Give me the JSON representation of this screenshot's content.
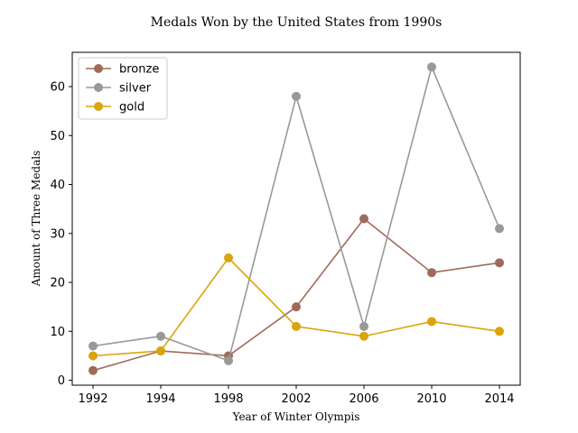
{
  "chart_data": {
    "type": "line",
    "title": "Medals Won by the United States from 1990s",
    "xlabel": "Year of Winter Olympis",
    "ylabel": "Amount of Three Medals",
    "categories": [
      "1992",
      "1994",
      "1998",
      "2002",
      "2006",
      "2010",
      "2014"
    ],
    "yticks": [
      0,
      10,
      20,
      30,
      40,
      50,
      60
    ],
    "ylim": [
      -1,
      67
    ],
    "grid": false,
    "legend_position": "top-left",
    "series": [
      {
        "name": "bronze",
        "color": "#9e6b5a",
        "values": [
          2,
          6,
          5,
          15,
          33,
          22,
          24
        ]
      },
      {
        "name": "silver",
        "color": "#999999",
        "values": [
          7,
          9,
          4,
          58,
          11,
          64,
          31
        ]
      },
      {
        "name": "gold",
        "color": "#dba40c",
        "values": [
          5,
          6,
          25,
          11,
          9,
          12,
          10
        ]
      }
    ]
  }
}
